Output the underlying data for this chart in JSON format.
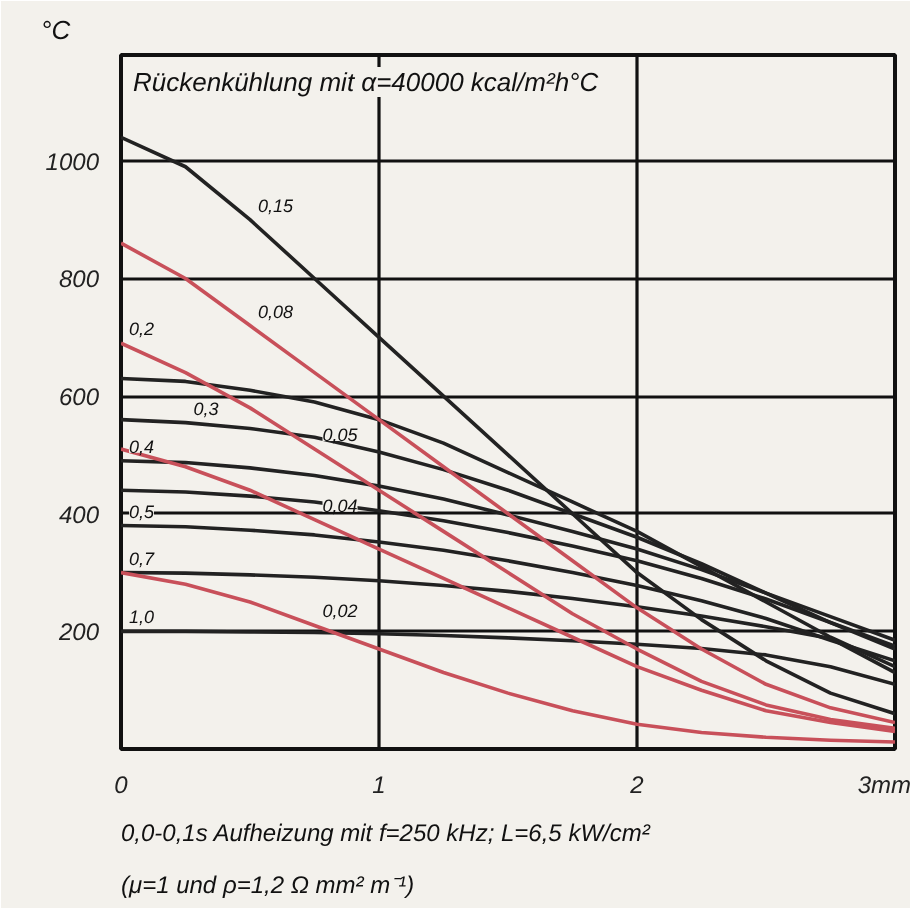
{
  "chart_data": {
    "type": "line",
    "title": "Rückenkühlung mit α=40000 kcal/m²h°C",
    "ylabel": "°C",
    "x": [
      0,
      0.25,
      0.5,
      0.75,
      1,
      1.25,
      1.5,
      1.75,
      2,
      2.25,
      2.5,
      2.75,
      3
    ],
    "series": [
      {
        "color": "#222222",
        "values": [
          1040,
          990,
          900,
          800,
          700,
          600,
          500,
          400,
          300,
          220,
          150,
          95,
          60
        ]
      },
      {
        "color": "#222222",
        "values": [
          630,
          625,
          610,
          590,
          560,
          520,
          470,
          420,
          370,
          310,
          250,
          190,
          140
        ]
      },
      {
        "color": "#222222",
        "values": [
          560,
          555,
          545,
          530,
          505,
          475,
          440,
          400,
          360,
          315,
          265,
          215,
          170
        ]
      },
      {
        "color": "#222222",
        "values": [
          490,
          487,
          478,
          465,
          447,
          425,
          398,
          370,
          340,
          305,
          265,
          225,
          185
        ]
      },
      {
        "color": "#222222",
        "values": [
          440,
          437,
          430,
          420,
          405,
          388,
          368,
          345,
          320,
          290,
          255,
          215,
          175
        ]
      },
      {
        "color": "#222222",
        "values": [
          380,
          378,
          372,
          364,
          352,
          338,
          320,
          300,
          278,
          252,
          222,
          185,
          150
        ]
      },
      {
        "color": "#222222",
        "values": [
          300,
          299,
          296,
          292,
          286,
          278,
          268,
          256,
          242,
          226,
          208,
          188,
          130
        ]
      },
      {
        "color": "#222222",
        "values": [
          200,
          200,
          199,
          198,
          196,
          193,
          189,
          184,
          178,
          171,
          160,
          140,
          110
        ]
      },
      {
        "color": "#c8505a",
        "values": [
          860,
          800,
          720,
          640,
          560,
          480,
          400,
          320,
          240,
          170,
          110,
          70,
          45
        ]
      },
      {
        "color": "#c8505a",
        "values": [
          690,
          640,
          580,
          510,
          440,
          370,
          300,
          230,
          170,
          115,
          75,
          50,
          35
        ]
      },
      {
        "color": "#c8505a",
        "values": [
          510,
          480,
          440,
          390,
          340,
          290,
          240,
          190,
          140,
          100,
          65,
          45,
          30
        ]
      },
      {
        "color": "#c8505a",
        "values": [
          300,
          280,
          250,
          210,
          170,
          130,
          95,
          65,
          42,
          28,
          20,
          15,
          12
        ]
      }
    ],
    "xlim": [
      0,
      3
    ],
    "ylim": [
      0,
      1180
    ],
    "xticks": [
      0,
      1,
      2,
      {
        "value": 3,
        "label": "3mm"
      }
    ],
    "yticks": [
      200,
      400,
      600,
      800,
      1000
    ],
    "grid": true,
    "line_style": "solid",
    "marker": "none",
    "annotations": [
      {
        "text": "0,15",
        "x": 0.5,
        "y": 900
      },
      {
        "text": "0,08",
        "x": 0.5,
        "y": 720
      },
      {
        "text": "0,2",
        "x": 0,
        "y": 690
      },
      {
        "text": "0,3",
        "x": 0.25,
        "y": 555
      },
      {
        "text": "0,05",
        "x": 0.75,
        "y": 510
      },
      {
        "text": "0,4",
        "x": 0,
        "y": 490
      },
      {
        "text": "0,5",
        "x": 0,
        "y": 380
      },
      {
        "text": "0,04",
        "x": 0.75,
        "y": 390
      },
      {
        "text": "0,7",
        "x": 0,
        "y": 300
      },
      {
        "text": "1,0",
        "x": 0,
        "y": 200
      },
      {
        "text": "0,02",
        "x": 0.75,
        "y": 210
      },
      "0,0-0,1s Aufheizung mit f=250 kHz; L=6,5 kW/cm²",
      "(μ=1 und ρ=1,2 Ω mm² m⁻¹)"
    ]
  }
}
